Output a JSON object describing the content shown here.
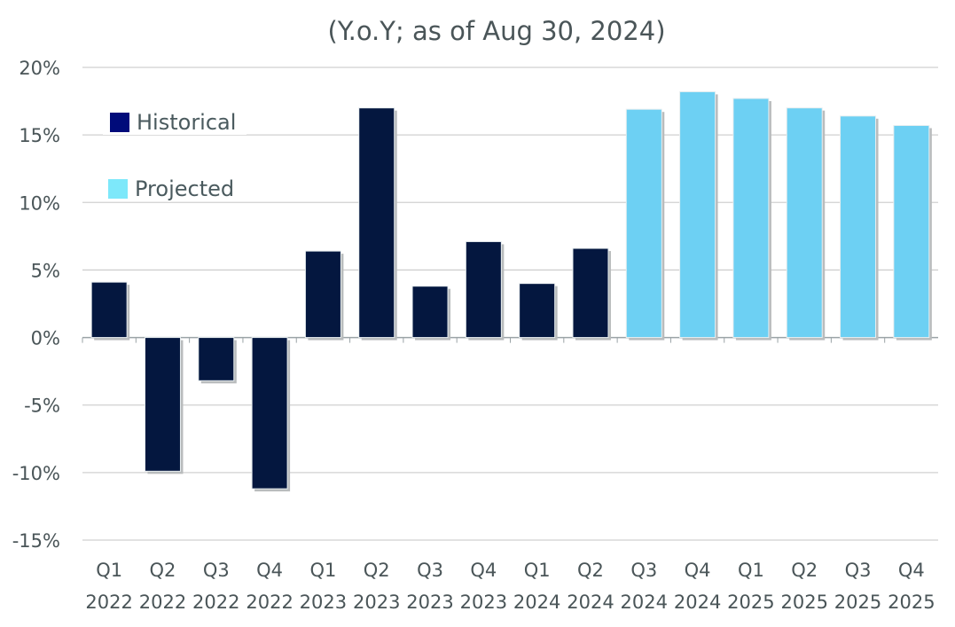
{
  "chart_data": {
    "type": "bar",
    "title": "(Y.o.Y; as of Aug 30, 2024)",
    "xlabel": "",
    "ylabel": "",
    "ylim": [
      -15,
      20
    ],
    "yticks": [
      20,
      15,
      10,
      5,
      0,
      -5,
      -10,
      -15
    ],
    "ytick_labels": [
      "20%",
      "15%",
      "10%",
      "5%",
      "0%",
      "-5%",
      "-10%",
      "-15%"
    ],
    "grid": true,
    "legend_position": "top-left",
    "categories": [
      [
        "Q1",
        "2022"
      ],
      [
        "Q2",
        "2022"
      ],
      [
        "Q3",
        "2022"
      ],
      [
        "Q4",
        "2022"
      ],
      [
        "Q1",
        "2023"
      ],
      [
        "Q2",
        "2023"
      ],
      [
        "Q3",
        "2023"
      ],
      [
        "Q4",
        "2023"
      ],
      [
        "Q1",
        "2024"
      ],
      [
        "Q2",
        "2024"
      ],
      [
        "Q3",
        "2024"
      ],
      [
        "Q4",
        "2024"
      ],
      [
        "Q1",
        "2025"
      ],
      [
        "Q2",
        "2025"
      ],
      [
        "Q3",
        "2025"
      ],
      [
        "Q4",
        "2025"
      ]
    ],
    "values": [
      4.1,
      -9.9,
      -3.2,
      -11.2,
      6.4,
      17.0,
      3.8,
      7.1,
      4.0,
      6.6,
      16.9,
      18.2,
      17.7,
      17.0,
      16.4,
      15.7
    ],
    "series_type": [
      "Historical",
      "Historical",
      "Historical",
      "Historical",
      "Historical",
      "Historical",
      "Historical",
      "Historical",
      "Historical",
      "Historical",
      "Projected",
      "Projected",
      "Projected",
      "Projected",
      "Projected",
      "Projected"
    ],
    "legend": [
      {
        "name": "Historical",
        "color": "#000b7a",
        "bar_color": "#04173f"
      },
      {
        "name": "Projected",
        "color": "#7de8fa",
        "bar_color": "#6dd0f3"
      }
    ]
  }
}
